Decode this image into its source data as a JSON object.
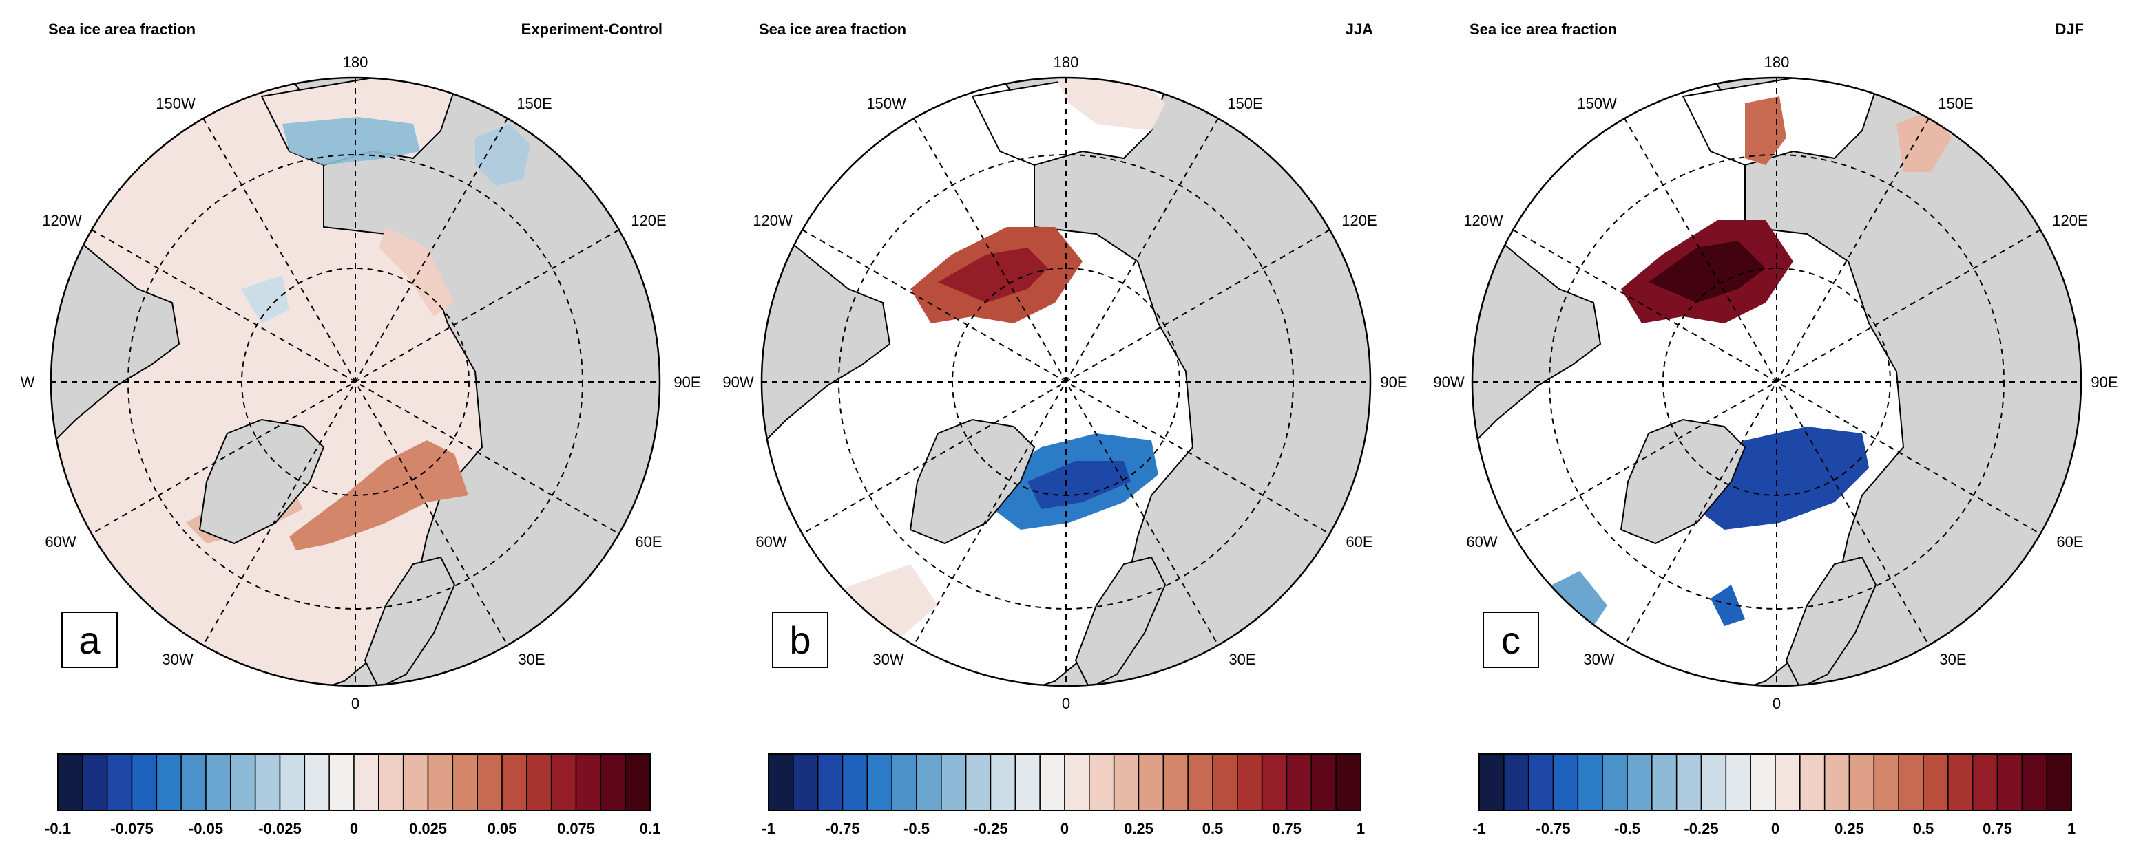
{
  "colors": {
    "land": "#d3d3d3",
    "ocean": "#ffffff",
    "line": "#000000",
    "colorbar": [
      "#101c46",
      "#17307f",
      "#1d48a8",
      "#1f62bd",
      "#2b7bc6",
      "#4a92c9",
      "#6aa6cf",
      "#8cbad7",
      "#aecbe0",
      "#ccdde7",
      "#e2e8ec",
      "#f1eeee",
      "#f4e4df",
      "#f0d0c4",
      "#e8b9a6",
      "#dfa088",
      "#d4866b",
      "#c86a51",
      "#ba4e3c",
      "#a8332f",
      "#951d27",
      "#7c0f21",
      "#5f061a",
      "#42020f"
    ]
  },
  "panels": [
    {
      "label": "a",
      "title_left": "Sea ice area fraction",
      "title_right": "Experiment-Control",
      "lon_labels": {
        "top": "180",
        "top_left": "150W",
        "top_right": "150E",
        "upper_left": "120W",
        "upper_right": "120E",
        "left": "W",
        "right": "90E",
        "lower_left": "60W",
        "lower_right": "60E",
        "bottom_left": "30W",
        "bottom_right": "30E",
        "bottom": "0"
      },
      "colorbar_ticks": [
        "-0.1",
        "-0.075",
        "-0.05",
        "-0.025",
        "0",
        "0.025",
        "0.05",
        "0.075",
        "0.1"
      ]
    },
    {
      "label": "b",
      "title_left": "Sea ice area fraction",
      "title_right": "JJA",
      "lon_labels": {
        "top": "180",
        "top_left": "150W",
        "top_right": "150E",
        "upper_left": "120W",
        "upper_right": "120E",
        "left": "90W",
        "right": "90E",
        "lower_left": "60W",
        "lower_right": "60E",
        "bottom_left": "30W",
        "bottom_right": "30E",
        "bottom": "0"
      },
      "colorbar_ticks": [
        "-1",
        "-0.75",
        "-0.5",
        "-0.25",
        "0",
        "0.25",
        "0.5",
        "0.75",
        "1"
      ]
    },
    {
      "label": "c",
      "title_left": "Sea ice area fraction",
      "title_right": "DJF",
      "lon_labels": {
        "top": "180",
        "top_left": "150W",
        "top_right": "150E",
        "upper_left": "120W",
        "upper_right": "120E",
        "left": "90W",
        "right": "90E",
        "lower_left": "60W",
        "lower_right": "60E",
        "bottom_left": "30W",
        "bottom_right": "30E",
        "bottom": "0"
      },
      "colorbar_ticks": [
        "-1",
        "-0.75",
        "-0.5",
        "-0.25",
        "0",
        "0.25",
        "0.5",
        "0.75",
        "1"
      ]
    }
  ]
}
